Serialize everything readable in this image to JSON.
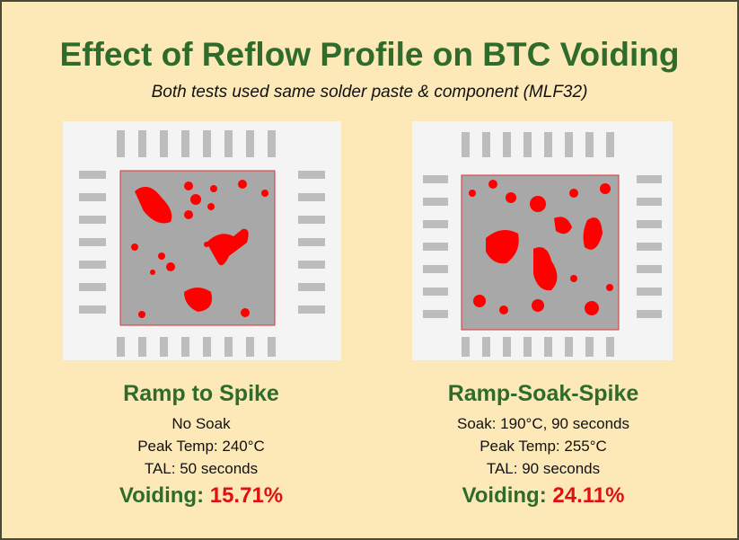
{
  "header": {
    "title": "Effect of Reflow Profile on BTC Voiding",
    "subtitle": "Both tests used same solder paste & component (MLF32)"
  },
  "panels": [
    {
      "heading": "Ramp to Spike",
      "lines": [
        "No Soak",
        "Peak Temp: 240°C",
        "TAL: 50 seconds"
      ],
      "voiding_label": "Voiding:",
      "voiding_value": "15.71%"
    },
    {
      "heading": "Ramp-Soak-Spike",
      "lines": [
        "Soak: 190°C, 90 seconds",
        "Peak Temp: 255°C",
        "TAL: 90 seconds"
      ],
      "voiding_label": "Voiding:",
      "voiding_value": "24.11%"
    }
  ]
}
